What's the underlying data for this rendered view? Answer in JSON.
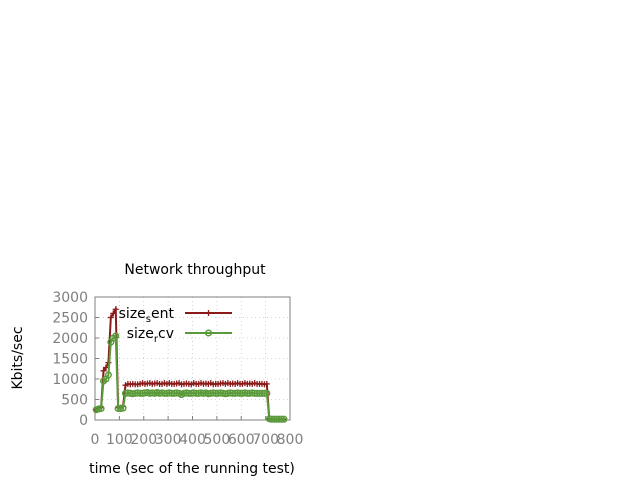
{
  "chart_data": {
    "type": "line",
    "title": "Network throughput",
    "xlabel": "time (sec of the running test)",
    "ylabel": "Kbits/sec",
    "xlim": [
      0,
      800
    ],
    "ylim": [
      0,
      3000
    ],
    "x_ticks": [
      0,
      100,
      200,
      300,
      400,
      500,
      600,
      700,
      800
    ],
    "y_ticks": [
      0,
      500,
      1000,
      1500,
      2000,
      2500,
      3000
    ],
    "grid": true,
    "legend_position": "top-left",
    "series": [
      {
        "name": "size_sent",
        "legend_main": "size",
        "legend_sub": "s",
        "legend_tail": "ent",
        "color": "#8b1a1a",
        "marker": "plus",
        "points": [
          [
            5,
            250
          ],
          [
            15,
            280
          ],
          [
            25,
            300
          ],
          [
            35,
            1200
          ],
          [
            45,
            1280
          ],
          [
            55,
            1400
          ],
          [
            65,
            2500
          ],
          [
            75,
            2600
          ],
          [
            85,
            2700
          ],
          [
            95,
            300
          ],
          [
            105,
            300
          ],
          [
            115,
            330
          ],
          [
            125,
            850
          ],
          [
            135,
            880
          ],
          [
            145,
            870
          ],
          [
            155,
            880
          ],
          [
            165,
            870
          ],
          [
            175,
            870
          ],
          [
            185,
            880
          ],
          [
            195,
            900
          ],
          [
            205,
            880
          ],
          [
            215,
            890
          ],
          [
            225,
            900
          ],
          [
            235,
            880
          ],
          [
            245,
            890
          ],
          [
            255,
            900
          ],
          [
            265,
            880
          ],
          [
            275,
            880
          ],
          [
            285,
            900
          ],
          [
            295,
            880
          ],
          [
            305,
            900
          ],
          [
            315,
            880
          ],
          [
            325,
            880
          ],
          [
            335,
            890
          ],
          [
            345,
            900
          ],
          [
            355,
            870
          ],
          [
            365,
            880
          ],
          [
            375,
            890
          ],
          [
            385,
            880
          ],
          [
            395,
            870
          ],
          [
            405,
            900
          ],
          [
            415,
            880
          ],
          [
            425,
            880
          ],
          [
            435,
            900
          ],
          [
            445,
            880
          ],
          [
            455,
            890
          ],
          [
            465,
            880
          ],
          [
            475,
            900
          ],
          [
            485,
            870
          ],
          [
            495,
            880
          ],
          [
            505,
            880
          ],
          [
            515,
            890
          ],
          [
            525,
            900
          ],
          [
            535,
            880
          ],
          [
            545,
            900
          ],
          [
            555,
            880
          ],
          [
            565,
            890
          ],
          [
            575,
            880
          ],
          [
            585,
            900
          ],
          [
            595,
            880
          ],
          [
            605,
            880
          ],
          [
            615,
            900
          ],
          [
            625,
            880
          ],
          [
            635,
            890
          ],
          [
            645,
            880
          ],
          [
            655,
            900
          ],
          [
            665,
            880
          ],
          [
            675,
            880
          ],
          [
            685,
            880
          ],
          [
            695,
            870
          ],
          [
            705,
            880
          ],
          [
            715,
            30
          ],
          [
            725,
            20
          ],
          [
            735,
            20
          ],
          [
            745,
            20
          ],
          [
            755,
            20
          ],
          [
            765,
            20
          ],
          [
            775,
            20
          ]
        ]
      },
      {
        "name": "size_rcv",
        "legend_main": "size",
        "legend_sub": "r",
        "legend_tail": "cv",
        "color": "#5a9a3a",
        "marker": "circle",
        "points": [
          [
            5,
            250
          ],
          [
            15,
            270
          ],
          [
            25,
            280
          ],
          [
            35,
            950
          ],
          [
            45,
            1000
          ],
          [
            55,
            1100
          ],
          [
            65,
            1900
          ],
          [
            75,
            2000
          ],
          [
            85,
            2050
          ],
          [
            95,
            280
          ],
          [
            105,
            280
          ],
          [
            115,
            290
          ],
          [
            125,
            650
          ],
          [
            135,
            660
          ],
          [
            145,
            650
          ],
          [
            155,
            640
          ],
          [
            165,
            650
          ],
          [
            175,
            660
          ],
          [
            185,
            650
          ],
          [
            195,
            650
          ],
          [
            205,
            660
          ],
          [
            215,
            670
          ],
          [
            225,
            650
          ],
          [
            235,
            660
          ],
          [
            245,
            650
          ],
          [
            255,
            670
          ],
          [
            265,
            650
          ],
          [
            275,
            660
          ],
          [
            285,
            650
          ],
          [
            295,
            650
          ],
          [
            305,
            660
          ],
          [
            315,
            650
          ],
          [
            325,
            650
          ],
          [
            335,
            660
          ],
          [
            345,
            650
          ],
          [
            355,
            620
          ],
          [
            365,
            650
          ],
          [
            375,
            660
          ],
          [
            385,
            650
          ],
          [
            395,
            650
          ],
          [
            405,
            660
          ],
          [
            415,
            650
          ],
          [
            425,
            650
          ],
          [
            435,
            660
          ],
          [
            445,
            650
          ],
          [
            455,
            660
          ],
          [
            465,
            640
          ],
          [
            475,
            650
          ],
          [
            485,
            660
          ],
          [
            495,
            650
          ],
          [
            505,
            650
          ],
          [
            515,
            660
          ],
          [
            525,
            650
          ],
          [
            535,
            640
          ],
          [
            545,
            650
          ],
          [
            555,
            660
          ],
          [
            565,
            650
          ],
          [
            575,
            650
          ],
          [
            585,
            660
          ],
          [
            595,
            650
          ],
          [
            605,
            650
          ],
          [
            615,
            660
          ],
          [
            625,
            650
          ],
          [
            635,
            650
          ],
          [
            645,
            660
          ],
          [
            655,
            650
          ],
          [
            665,
            650
          ],
          [
            675,
            650
          ],
          [
            685,
            650
          ],
          [
            695,
            650
          ],
          [
            705,
            650
          ],
          [
            715,
            30
          ],
          [
            725,
            20
          ],
          [
            735,
            20
          ],
          [
            745,
            20
          ],
          [
            755,
            20
          ],
          [
            765,
            20
          ],
          [
            775,
            20
          ]
        ]
      }
    ]
  }
}
